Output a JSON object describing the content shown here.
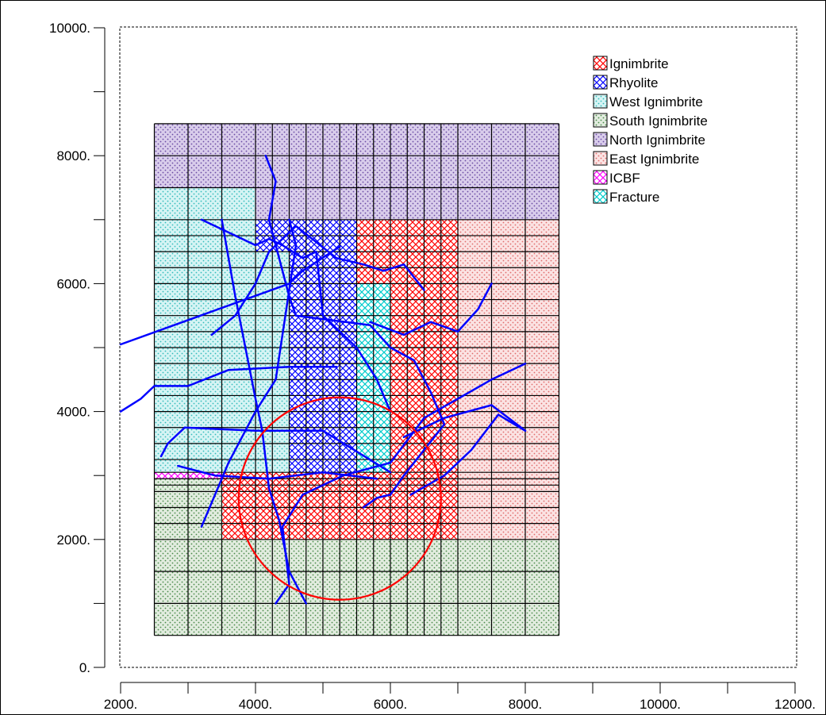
{
  "chart_data": {
    "type": "diagram",
    "title": "",
    "xlabel": "",
    "ylabel": "",
    "xlim": [
      2000,
      12000
    ],
    "ylim": [
      0,
      10000
    ],
    "x_ticks": [
      "2000.",
      "4000.",
      "6000.",
      "8000.",
      "10000.",
      "12000."
    ],
    "y_ticks": [
      "0.",
      "2000.",
      "4000.",
      "6000.",
      "8000.",
      "10000."
    ],
    "legend_position": "top-right",
    "legend": [
      {
        "name": "Ignimbrite",
        "color": "#ff0000",
        "pattern": "crosshatch"
      },
      {
        "name": "Rhyolite",
        "color": "#0000ff",
        "pattern": "crosshatch"
      },
      {
        "name": "West Ignimbrite",
        "color": "#66dddd",
        "pattern": "stipple"
      },
      {
        "name": "South Ignimbrite",
        "color": "#4a8a4a",
        "pattern": "stipple"
      },
      {
        "name": "North Ignimbrite",
        "color": "#7755aa",
        "pattern": "stipple"
      },
      {
        "name": "East Ignimbrite",
        "color": "#ee7777",
        "pattern": "stipple"
      },
      {
        "name": "ICBF",
        "color": "#ff00ff",
        "pattern": "crosshatch"
      },
      {
        "name": "Fracture",
        "color": "#00cccc",
        "pattern": "crosshatch"
      }
    ],
    "grid_x": [
      2500,
      3000,
      3500,
      4000,
      4250,
      4500,
      4750,
      5000,
      5250,
      5500,
      5750,
      6000,
      6250,
      6500,
      6750,
      7000,
      7500,
      8000,
      8500
    ],
    "grid_y": [
      500,
      1000,
      1500,
      2000,
      2250,
      2500,
      2750,
      2850,
      2950,
      3050,
      3250,
      3500,
      3750,
      4000,
      4250,
      4500,
      4750,
      5000,
      5250,
      5500,
      5750,
      6000,
      6250,
      6500,
      6750,
      7000,
      7500,
      8000,
      8500
    ],
    "zones": [
      {
        "type": "North Ignimbrite",
        "x": [
          2500,
          8500
        ],
        "y": [
          7500,
          8500
        ]
      },
      {
        "type": "North Ignimbrite",
        "x": [
          4000,
          8500
        ],
        "y": [
          7000,
          7500
        ]
      },
      {
        "type": "West Ignimbrite",
        "x": [
          2500,
          4000
        ],
        "y": [
          7000,
          7500
        ]
      },
      {
        "type": "West Ignimbrite",
        "x": [
          2500,
          4000
        ],
        "y": [
          3050,
          7000
        ]
      },
      {
        "type": "West Ignimbrite",
        "x": [
          4000,
          4500
        ],
        "y": [
          3050,
          6500
        ]
      },
      {
        "type": "Rhyolite",
        "x": [
          4000,
          5500
        ],
        "y": [
          6500,
          7000
        ]
      },
      {
        "type": "Rhyolite",
        "x": [
          4500,
          5500
        ],
        "y": [
          3050,
          6500
        ]
      },
      {
        "type": "Ignimbrite",
        "x": [
          5500,
          7000
        ],
        "y": [
          6000,
          7000
        ]
      },
      {
        "type": "Ignimbrite",
        "x": [
          6000,
          7000
        ],
        "y": [
          2000,
          6000
        ]
      },
      {
        "type": "Fracture",
        "x": [
          5500,
          6000
        ],
        "y": [
          2500,
          6000
        ]
      },
      {
        "type": "East Ignimbrite",
        "x": [
          7000,
          8500
        ],
        "y": [
          2000,
          7000
        ]
      },
      {
        "type": "ICBF",
        "x": [
          2500,
          3500
        ],
        "y": [
          2950,
          3050
        ]
      },
      {
        "type": "South Ignimbrite",
        "x": [
          2500,
          3500
        ],
        "y": [
          2000,
          2950
        ]
      },
      {
        "type": "Ignimbrite",
        "x": [
          3500,
          6000
        ],
        "y": [
          2000,
          3050
        ]
      },
      {
        "type": "South Ignimbrite",
        "x": [
          2500,
          8500
        ],
        "y": [
          500,
          2000
        ]
      }
    ],
    "circle": {
      "center": [
        5250,
        2640
      ],
      "radius": 1500,
      "color": "#ff0000"
    },
    "fractures": [
      [
        [
          2000,
          5050
        ],
        [
          4500,
          6000
        ],
        [
          4700,
          6200
        ],
        [
          5250,
          6580
        ]
      ],
      [
        [
          2000,
          4000
        ],
        [
          2300,
          4200
        ],
        [
          2500,
          4400
        ],
        [
          3000,
          4400
        ],
        [
          3600,
          4650
        ],
        [
          4500,
          4700
        ],
        [
          5200,
          4700
        ]
      ],
      [
        [
          2600,
          3300
        ],
        [
          2700,
          3500
        ],
        [
          2950,
          3750
        ],
        [
          4000,
          3700
        ],
        [
          5000,
          3700
        ],
        [
          6000,
          3050
        ]
      ],
      [
        [
          2850,
          3150
        ],
        [
          3400,
          3000
        ],
        [
          4200,
          2950
        ],
        [
          5000,
          3050
        ],
        [
          5800,
          2950
        ]
      ],
      [
        [
          3200,
          2200
        ],
        [
          3600,
          3200
        ],
        [
          4000,
          4000
        ],
        [
          4300,
          4500
        ],
        [
          4600,
          6600
        ],
        [
          4500,
          7000
        ]
      ],
      [
        [
          3500,
          7000
        ],
        [
          3700,
          5800
        ],
        [
          4000,
          4200
        ],
        [
          4100,
          3700
        ],
        [
          4200,
          2800
        ],
        [
          4350,
          2300
        ],
        [
          4500,
          1500
        ],
        [
          4750,
          1000
        ]
      ],
      [
        [
          4300,
          1000
        ],
        [
          4500,
          1300
        ],
        [
          4400,
          2200
        ],
        [
          4700,
          2700
        ],
        [
          5300,
          3000
        ],
        [
          6000,
          3200
        ],
        [
          6500,
          3900
        ],
        [
          7000,
          4200
        ],
        [
          7500,
          4500
        ],
        [
          8000,
          4750
        ]
      ],
      [
        [
          3200,
          7000
        ],
        [
          4000,
          6600
        ],
        [
          4200,
          6700
        ],
        [
          4400,
          6600
        ],
        [
          4700,
          6400
        ],
        [
          4900,
          6500
        ],
        [
          5000,
          5500
        ],
        [
          5200,
          5300
        ],
        [
          5500,
          5000
        ],
        [
          5800,
          4500
        ],
        [
          6000,
          4000
        ]
      ],
      [
        [
          3350,
          5200
        ],
        [
          3700,
          5500
        ],
        [
          4000,
          6000
        ],
        [
          4200,
          6500
        ],
        [
          4600,
          6900
        ],
        [
          5200,
          6400
        ],
        [
          5600,
          6300
        ],
        [
          5900,
          6200
        ],
        [
          6200,
          6300
        ],
        [
          6500,
          5900
        ]
      ],
      [
        [
          4150,
          8000
        ],
        [
          4300,
          7600
        ],
        [
          4200,
          7000
        ],
        [
          4500,
          5800
        ],
        [
          4600,
          5500
        ],
        [
          5700,
          5350
        ],
        [
          6000,
          5000
        ],
        [
          6350,
          4800
        ],
        [
          6600,
          4300
        ],
        [
          6800,
          3800
        ],
        [
          6200,
          3000
        ],
        [
          6000,
          2700
        ],
        [
          5800,
          2650
        ],
        [
          5600,
          2500
        ]
      ],
      [
        [
          5700,
          5400
        ],
        [
          6200,
          5200
        ],
        [
          6600,
          5400
        ],
        [
          7000,
          5250
        ],
        [
          7300,
          5600
        ],
        [
          7500,
          6000
        ]
      ],
      [
        [
          6200,
          3600
        ],
        [
          6800,
          3900
        ],
        [
          7500,
          4100
        ],
        [
          8000,
          3700
        ]
      ],
      [
        [
          6300,
          2700
        ],
        [
          6800,
          3000
        ],
        [
          7200,
          3400
        ],
        [
          7600,
          3950
        ],
        [
          8000,
          3700
        ]
      ]
    ]
  }
}
